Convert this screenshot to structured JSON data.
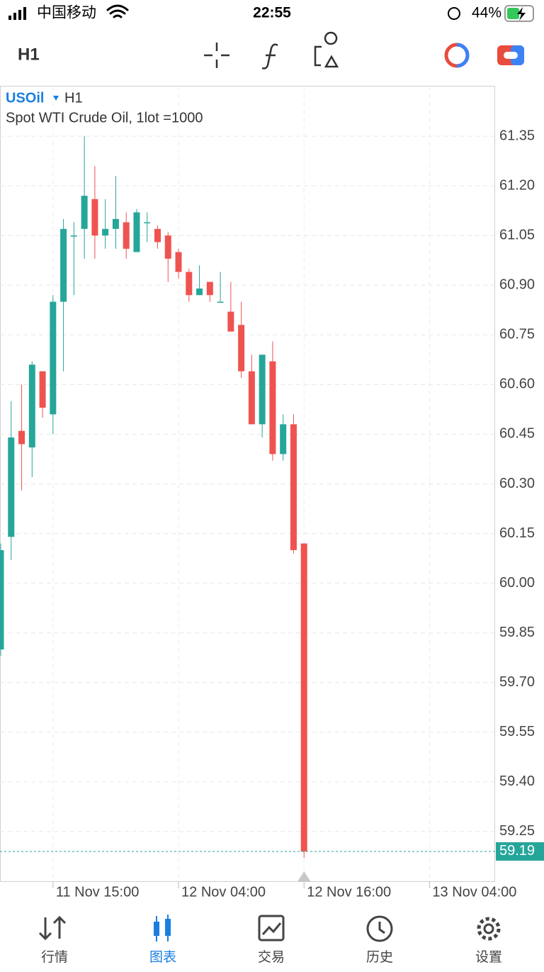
{
  "status_bar": {
    "carrier": "中国移动",
    "time": "22:55",
    "battery": "44%"
  },
  "toolbar": {
    "timeframe": "H1"
  },
  "chart_data": {
    "type": "candlestick",
    "title": "USOil",
    "timeframe": "H1",
    "subtitle": "Spot WTI Crude Oil, 1lot =1000",
    "x": [
      0,
      1,
      2,
      3,
      4,
      5,
      6,
      7,
      8,
      9,
      10,
      11,
      12,
      13,
      14,
      15,
      16,
      17,
      18,
      19,
      20,
      21,
      22,
      23,
      24,
      25,
      26,
      27,
      28,
      29
    ],
    "open": [
      59.8,
      60.14,
      60.46,
      60.41,
      60.64,
      60.51,
      60.85,
      61.05,
      61.07,
      61.16,
      61.05,
      61.07,
      61.09,
      61.0,
      61.09,
      61.07,
      61.05,
      61.0,
      60.94,
      60.87,
      60.91,
      60.85,
      60.82,
      60.78,
      60.64,
      60.48,
      60.67,
      60.39,
      60.48,
      60.12
    ],
    "high": [
      60.12,
      60.55,
      60.6,
      60.67,
      60.64,
      60.87,
      61.1,
      61.09,
      61.35,
      61.26,
      61.16,
      61.23,
      61.12,
      61.13,
      61.12,
      61.08,
      61.06,
      61.01,
      60.95,
      60.96,
      60.91,
      60.94,
      60.91,
      60.85,
      60.69,
      60.69,
      60.73,
      60.51,
      60.51,
      60.12
    ],
    "low": [
      59.78,
      60.07,
      60.28,
      60.32,
      60.5,
      60.45,
      60.64,
      60.87,
      60.98,
      60.98,
      61.01,
      61.01,
      60.98,
      61.0,
      61.03,
      61.01,
      60.91,
      60.92,
      60.85,
      60.87,
      60.85,
      60.85,
      60.76,
      60.62,
      60.48,
      60.44,
      60.37,
      60.37,
      60.09,
      59.17
    ],
    "close": [
      60.1,
      60.44,
      60.42,
      60.66,
      60.53,
      60.85,
      61.07,
      61.05,
      61.17,
      61.05,
      61.07,
      61.1,
      61.01,
      61.12,
      61.09,
      61.03,
      60.98,
      60.94,
      60.87,
      60.89,
      60.87,
      60.85,
      60.76,
      60.64,
      60.48,
      60.69,
      60.39,
      60.48,
      60.1,
      59.19
    ],
    "up_color": "#26a69a",
    "down_color": "#ef5350",
    "ylim": [
      59.1,
      61.5
    ],
    "yticks": [
      61.35,
      {
        "value": 61.2,
        "label": "61.20"
      },
      61.05,
      {
        "value": 60.9,
        "label": "60.90"
      },
      60.75,
      {
        "value": 60.6,
        "label": "60.60"
      },
      60.45,
      {
        "value": 60.3,
        "label": "60.30"
      },
      60.15,
      {
        "value": 60,
        "label": "60.00"
      },
      59.85,
      {
        "value": 59.7,
        "label": "59.70"
      },
      59.55,
      {
        "value": 59.4,
        "label": "59.40"
      },
      59.25
    ],
    "xlim": [
      0,
      47
    ],
    "xticks": [
      {
        "value": 5,
        "label": "11 Nov 15:00"
      },
      {
        "value": 17,
        "label": "12 Nov 04:00"
      },
      {
        "value": 29,
        "label": "12 Nov 16:00"
      },
      {
        "value": 41,
        "label": "13 Nov 04:00"
      }
    ],
    "current_price": 59.19,
    "grid": true
  },
  "tab_bar": {
    "tabs": [
      "行情",
      "图表",
      "交易",
      "历史",
      "设置"
    ],
    "active": 1
  }
}
